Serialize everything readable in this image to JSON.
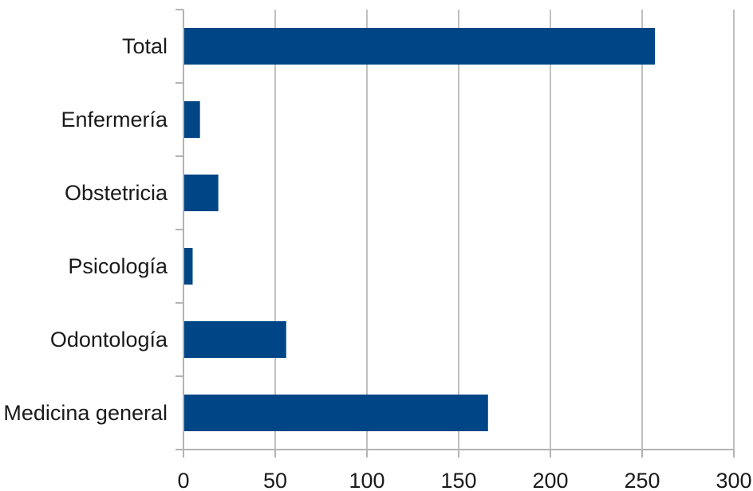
{
  "chart_data": {
    "type": "bar",
    "orientation": "horizontal",
    "categories": [
      "Total",
      "Enfermería",
      "Obstetricia",
      "Psicología",
      "Odontología",
      "Medicina general"
    ],
    "values": [
      257,
      9,
      19,
      5,
      56,
      166
    ],
    "x_ticks": [
      0,
      50,
      100,
      150,
      200,
      250,
      300
    ],
    "xlim": [
      0,
      300
    ],
    "grid": true,
    "legend": "none",
    "bar_color": "#004586"
  }
}
